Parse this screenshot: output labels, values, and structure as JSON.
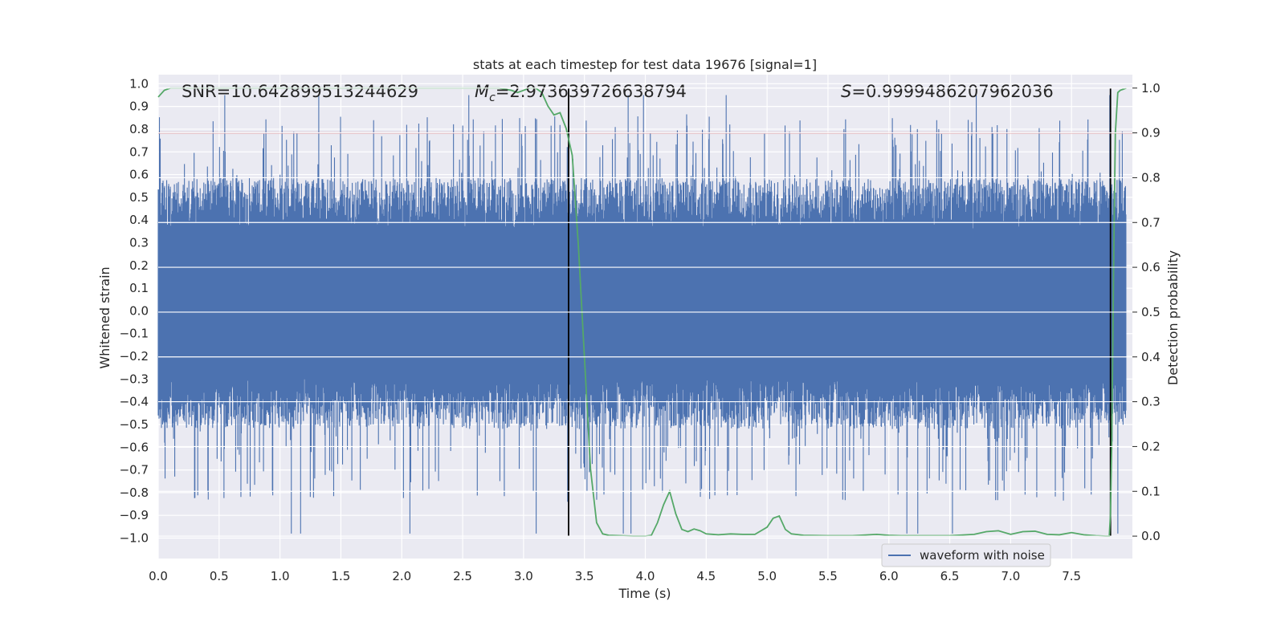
{
  "chart_data": {
    "type": "line",
    "title": "stats at each timestep for test data 19676 [signal=1]",
    "xlabel": "Time (s)",
    "ylabel_left": "Whitened strain",
    "ylabel_right": "Detection probability",
    "xlim": [
      0.0,
      8.0
    ],
    "ylim_left": [
      -1.09,
      1.04
    ],
    "ylim_right": [
      -0.05,
      1.03
    ],
    "x_ticks": [
      "0.0",
      "0.5",
      "1.0",
      "1.5",
      "2.0",
      "2.5",
      "3.0",
      "3.5",
      "4.0",
      "4.5",
      "5.0",
      "5.5",
      "6.0",
      "6.5",
      "7.0",
      "7.5"
    ],
    "y_ticks_left": [
      "1.0",
      "0.9",
      "0.8",
      "0.7",
      "0.6",
      "0.5",
      "0.4",
      "0.3",
      "0.2",
      "0.1",
      "0.0",
      "−0.1",
      "−0.2",
      "−0.3",
      "−0.4",
      "−0.5",
      "−0.6",
      "−0.7",
      "−0.8",
      "−0.9",
      "−1.0"
    ],
    "y_ticks_right": [
      "1.0",
      "0.9",
      "0.8",
      "0.7",
      "0.6",
      "0.5",
      "0.4",
      "0.3",
      "0.2",
      "0.1",
      "0.0"
    ],
    "grid": true,
    "annotations": {
      "snr": "SNR=10.642899513244629",
      "mc_symbol": "M",
      "mc_sub": "c",
      "mc_value": "=2.973639726638794",
      "s_symbol": "S",
      "s_value": "=0.9999486207962036"
    },
    "threshold_line": {
      "axis": "right",
      "value": 0.9,
      "color": "#c44e52"
    },
    "vertical_lines": [
      3.37,
      7.82
    ],
    "waveform": {
      "name": "waveform with noise",
      "color": "#4c72b0",
      "description_values": "dense whitened-strain noise, typical range -0.45..0.55, spikes up to 0.98 and down to -1.0"
    },
    "detection_probability": {
      "color": "#55a868",
      "x": [
        0.0,
        0.05,
        0.1,
        0.5,
        1.0,
        1.5,
        2.0,
        2.5,
        2.8,
        2.9,
        2.95,
        3.0,
        3.05,
        3.1,
        3.15,
        3.2,
        3.25,
        3.3,
        3.35,
        3.4,
        3.45,
        3.5,
        3.55,
        3.6,
        3.65,
        3.7,
        3.8,
        3.9,
        4.0,
        4.05,
        4.1,
        4.15,
        4.2,
        4.25,
        4.3,
        4.35,
        4.4,
        4.45,
        4.5,
        4.6,
        4.7,
        4.8,
        4.9,
        5.0,
        5.05,
        5.1,
        5.15,
        5.2,
        5.3,
        5.5,
        5.7,
        5.9,
        6.0,
        6.1,
        6.5,
        6.7,
        6.8,
        6.9,
        7.0,
        7.1,
        7.2,
        7.3,
        7.4,
        7.5,
        7.6,
        7.7,
        7.78,
        7.8,
        7.81,
        7.82,
        7.83,
        7.84,
        7.85,
        7.86,
        7.88,
        7.9,
        7.95
      ],
      "y": [
        0.98,
        0.995,
        1.0,
        1.0,
        1.0,
        1.0,
        1.0,
        1.0,
        1.0,
        0.995,
        0.99,
        0.995,
        1.0,
        1.0,
        0.99,
        0.96,
        0.94,
        0.945,
        0.91,
        0.85,
        0.65,
        0.4,
        0.15,
        0.03,
        0.005,
        0.002,
        0.001,
        0.0,
        0.0,
        0.002,
        0.03,
        0.07,
        0.1,
        0.05,
        0.015,
        0.01,
        0.016,
        0.012,
        0.005,
        0.003,
        0.005,
        0.004,
        0.004,
        0.02,
        0.04,
        0.045,
        0.015,
        0.005,
        0.002,
        0.001,
        0.001,
        0.004,
        0.002,
        0.001,
        0.001,
        0.004,
        0.01,
        0.012,
        0.004,
        0.01,
        0.011,
        0.004,
        0.003,
        0.008,
        0.003,
        0.001,
        0.0,
        0.0,
        0.0,
        0.05,
        0.2,
        0.45,
        0.7,
        0.9,
        0.99,
        0.995,
        1.0
      ]
    },
    "legend": {
      "label": "waveform with noise",
      "placement": "lower-right"
    }
  }
}
